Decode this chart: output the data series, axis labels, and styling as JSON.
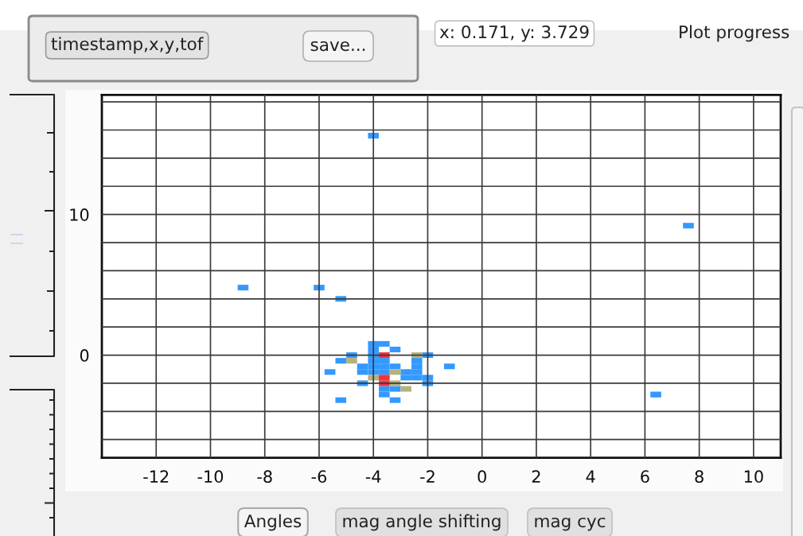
{
  "chart_data": {
    "type": "scatter",
    "marker": "square",
    "grid": true,
    "xlim": [
      -14,
      11
    ],
    "ylim": [
      -7.3,
      18.5
    ],
    "xticks": [
      -12,
      -10,
      -8,
      -6,
      -4,
      -2,
      0,
      2,
      4,
      6,
      8,
      10
    ],
    "yticks": [
      {
        "value": -6,
        "label": null
      },
      {
        "value": -4,
        "label": null
      },
      {
        "value": -2,
        "label": null
      },
      0,
      {
        "value": 2,
        "label": null
      },
      {
        "value": 4,
        "label": null
      },
      {
        "value": 6,
        "label": null
      },
      {
        "value": 8,
        "label": null
      },
      10,
      {
        "value": 12,
        "label": null
      },
      {
        "value": 14,
        "label": null
      },
      {
        "value": 16,
        "label": null
      },
      {
        "value": 18,
        "label": null
      }
    ],
    "series": [
      {
        "color": "#3399ff",
        "x": [
          -4.0,
          -8.8,
          -6.0,
          -5.2,
          7.6,
          6.4,
          -5.6,
          -5.2,
          -3.2,
          -1.2,
          -4.0,
          -3.6,
          -3.2,
          -4.0,
          -4.0,
          -4.0,
          -4.0,
          -4.0,
          -4.8,
          -5.2,
          -4.4,
          -4.4,
          -3.6,
          -3.6,
          -3.6,
          -3.2,
          -4.4,
          -3.6,
          -3.6,
          -3.2,
          -2.8,
          -2.8,
          -2.4,
          -2.4,
          -2.4,
          -2.4,
          -2.0,
          -2.0,
          -2.0
        ],
        "values": [
          15.6,
          4.8,
          4.8,
          4.0,
          9.2,
          -2.8,
          -1.2,
          -3.2,
          -3.2,
          -0.8,
          0.8,
          0.8,
          0.4,
          0.4,
          0.0,
          -0.4,
          -0.8,
          -1.2,
          0.0,
          -0.4,
          -0.8,
          -1.2,
          -0.4,
          -0.8,
          -1.2,
          -0.8,
          -2.0,
          -2.4,
          -2.8,
          -2.4,
          -1.2,
          -1.6,
          -0.4,
          -0.8,
          -1.2,
          -1.6,
          0.0,
          -1.6,
          -2.0
        ]
      },
      {
        "color": "#b5b27e",
        "x": [
          -4.8,
          -4.0,
          -3.2,
          -3.2,
          -2.8,
          -2.4
        ],
        "values": [
          -0.4,
          -1.6,
          -1.2,
          -2.0,
          -2.4,
          0.0
        ]
      },
      {
        "color": "#f2333d",
        "x": [
          -3.6,
          -3.6,
          -3.6
        ],
        "values": [
          0.0,
          -1.6,
          -2.0
        ]
      }
    ],
    "annotations": [
      "timestamp,x,y,tof",
      "save...",
      "x: 0.171, y: 3.729",
      "Plot progress",
      "Angles",
      "mag angle shifting",
      "mag cyc"
    ]
  }
}
